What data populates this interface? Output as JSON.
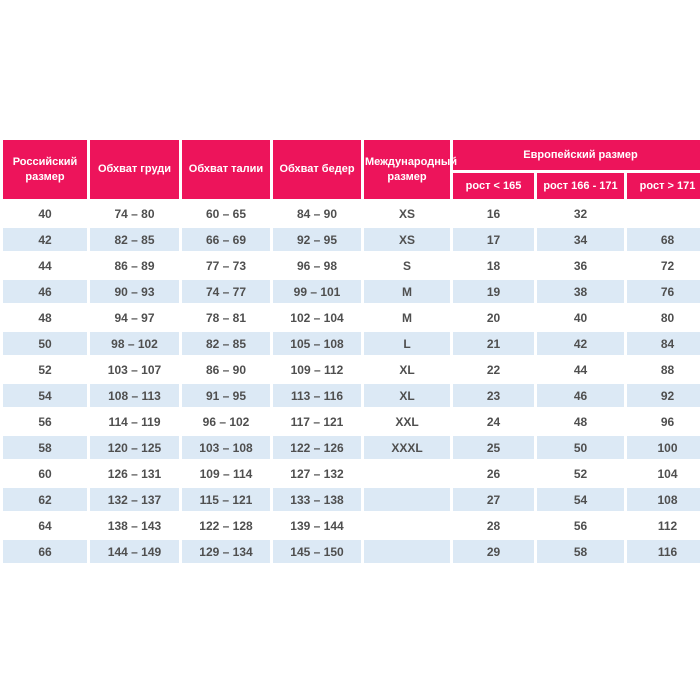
{
  "table": {
    "headers": {
      "russian_size": "Российский размер",
      "chest": "Обхват груди",
      "waist": "Обхват талии",
      "hips": "Обхват бедер",
      "international_size": "Международный размер",
      "european_group": "Европейский размер",
      "height_lt_165": "рост < 165",
      "height_166_171": "рост 166 - 171",
      "height_gt_171": "рост > 171"
    },
    "rows": [
      [
        "40",
        "74 – 80",
        "60 – 65",
        "84 – 90",
        "XS",
        "16",
        "32",
        ""
      ],
      [
        "42",
        "82 – 85",
        "66 – 69",
        "92 – 95",
        "XS",
        "17",
        "34",
        "68"
      ],
      [
        "44",
        "86 – 89",
        "77 – 73",
        "96 – 98",
        "S",
        "18",
        "36",
        "72"
      ],
      [
        "46",
        "90 – 93",
        "74 – 77",
        "99 – 101",
        "M",
        "19",
        "38",
        "76"
      ],
      [
        "48",
        "94 – 97",
        "78 – 81",
        "102 – 104",
        "M",
        "20",
        "40",
        "80"
      ],
      [
        "50",
        "98 – 102",
        "82 – 85",
        "105 – 108",
        "L",
        "21",
        "42",
        "84"
      ],
      [
        "52",
        "103 – 107",
        "86 – 90",
        "109 – 112",
        "XL",
        "22",
        "44",
        "88"
      ],
      [
        "54",
        "108 – 113",
        "91 – 95",
        "113 – 116",
        "XL",
        "23",
        "46",
        "92"
      ],
      [
        "56",
        "114 – 119",
        "96 – 102",
        "117 – 121",
        "XXL",
        "24",
        "48",
        "96"
      ],
      [
        "58",
        "120 – 125",
        "103 – 108",
        "122 – 126",
        "XXXL",
        "25",
        "50",
        "100"
      ],
      [
        "60",
        "126 – 131",
        "109 – 114",
        "127 – 132",
        "",
        "26",
        "52",
        "104"
      ],
      [
        "62",
        "132 – 137",
        "115 – 121",
        "133 – 138",
        "",
        "27",
        "54",
        "108"
      ],
      [
        "64",
        "138 – 143",
        "122 – 128",
        "139 – 144",
        "",
        "28",
        "56",
        "112"
      ],
      [
        "66",
        "144 – 149",
        "129 – 134",
        "145 – 150",
        "",
        "29",
        "58",
        "116"
      ]
    ],
    "colors": {
      "header_bg": "#ed145b",
      "header_text": "#ffffff",
      "row_bg": "#ffffff",
      "row_alt_bg": "#dce9f5",
      "cell_text": "#4f4f4f"
    }
  }
}
